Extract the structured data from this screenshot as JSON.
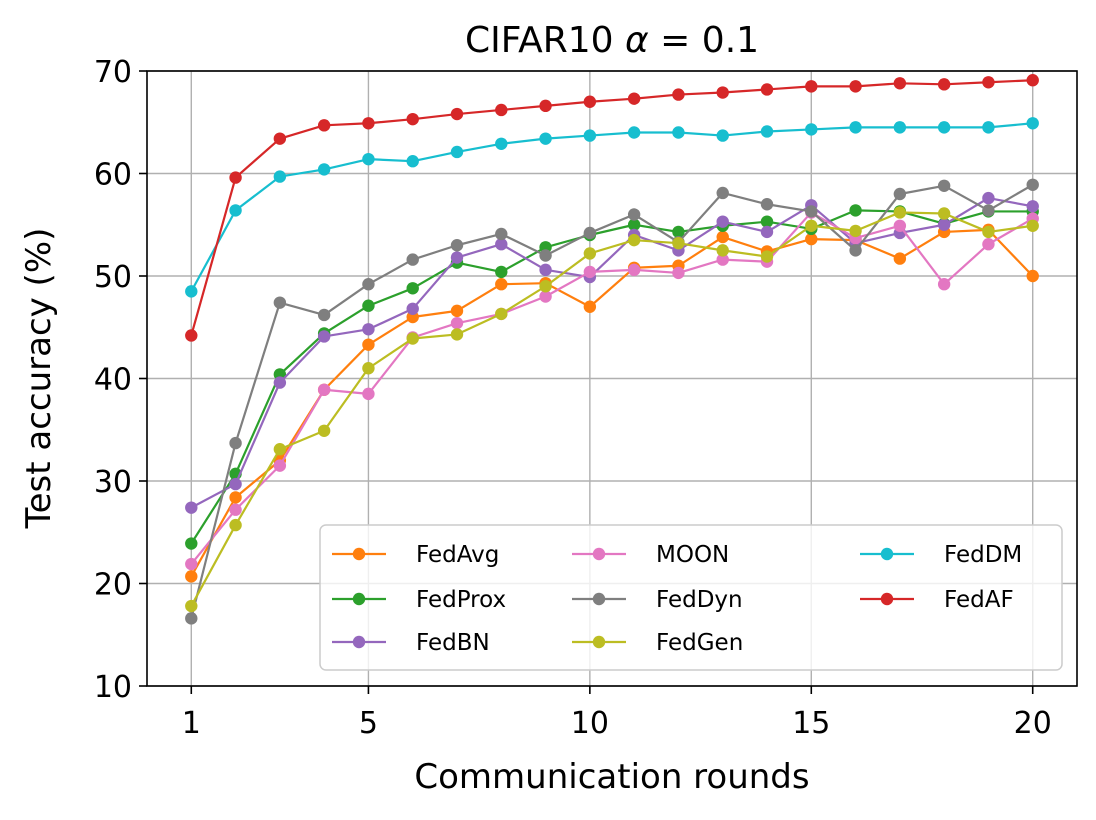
{
  "chart_data": {
    "type": "line",
    "title_prefix": "CIFAR10 ",
    "title_symbol": "α",
    "title_suffix": " = 0.1",
    "xlabel": "Communication rounds",
    "ylabel": "Test accuracy (%)",
    "xlim": [
      0,
      21
    ],
    "ylim": [
      10,
      70
    ],
    "xticks": [
      1,
      5,
      10,
      15,
      20
    ],
    "yticks": [
      10,
      20,
      30,
      40,
      50,
      60,
      70
    ],
    "grid": true,
    "legend_position": "lower-right",
    "x": [
      1,
      2,
      3,
      4,
      5,
      6,
      7,
      8,
      9,
      10,
      11,
      12,
      13,
      14,
      15,
      16,
      17,
      18,
      19,
      20
    ],
    "series": [
      {
        "name": "FedAvg",
        "color": "#ff7f0e",
        "values": [
          20.7,
          28.4,
          32.0,
          38.9,
          43.3,
          46.0,
          46.6,
          49.2,
          49.3,
          47.0,
          50.8,
          51.0,
          53.8,
          52.4,
          53.6,
          53.5,
          51.7,
          54.3,
          54.5,
          50.0
        ]
      },
      {
        "name": "FedProx",
        "color": "#2ca02c",
        "values": [
          23.9,
          30.7,
          40.4,
          44.4,
          47.1,
          48.8,
          51.3,
          50.4,
          52.8,
          54.0,
          55.0,
          54.3,
          54.9,
          55.3,
          54.6,
          56.4,
          56.3,
          55.1,
          56.3,
          56.3
        ]
      },
      {
        "name": "FedBN",
        "color": "#9467bd",
        "values": [
          27.4,
          29.7,
          39.6,
          44.1,
          44.8,
          46.8,
          51.8,
          53.1,
          50.6,
          49.9,
          54.0,
          52.5,
          55.3,
          54.3,
          56.9,
          53.2,
          54.2,
          55.0,
          57.6,
          56.8
        ]
      },
      {
        "name": "MOON",
        "color": "#e377c2",
        "values": [
          21.9,
          27.2,
          31.5,
          38.9,
          38.5,
          44.0,
          45.4,
          46.3,
          48.0,
          50.4,
          50.6,
          50.3,
          51.6,
          51.4,
          56.2,
          53.7,
          54.9,
          49.2,
          53.1,
          55.6
        ]
      },
      {
        "name": "FedDyn",
        "color": "#7f7f7f",
        "values": [
          16.6,
          33.7,
          47.4,
          46.2,
          49.2,
          51.6,
          53.0,
          54.1,
          52.0,
          54.2,
          56.0,
          53.3,
          58.1,
          57.0,
          56.3,
          52.5,
          58.0,
          58.8,
          56.4,
          58.9
        ]
      },
      {
        "name": "FedGen",
        "color": "#bcbd22",
        "values": [
          17.8,
          25.7,
          33.1,
          34.9,
          41.0,
          43.9,
          44.3,
          46.3,
          49.0,
          52.2,
          53.5,
          53.2,
          52.5,
          51.9,
          54.9,
          54.4,
          56.2,
          56.1,
          54.3,
          54.9
        ]
      },
      {
        "name": "FedDM",
        "color": "#17becf",
        "values": [
          48.5,
          56.4,
          59.7,
          60.4,
          61.4,
          61.2,
          62.1,
          62.9,
          63.4,
          63.7,
          64.0,
          64.0,
          63.7,
          64.1,
          64.3,
          64.5,
          64.5,
          64.5,
          64.5,
          64.9
        ]
      },
      {
        "name": "FedAF",
        "color": "#d62728",
        "values": [
          44.2,
          59.6,
          63.4,
          64.7,
          64.9,
          65.3,
          65.8,
          66.2,
          66.6,
          67.0,
          67.3,
          67.7,
          67.9,
          68.2,
          68.5,
          68.5,
          68.8,
          68.7,
          68.9,
          69.1
        ]
      }
    ]
  }
}
